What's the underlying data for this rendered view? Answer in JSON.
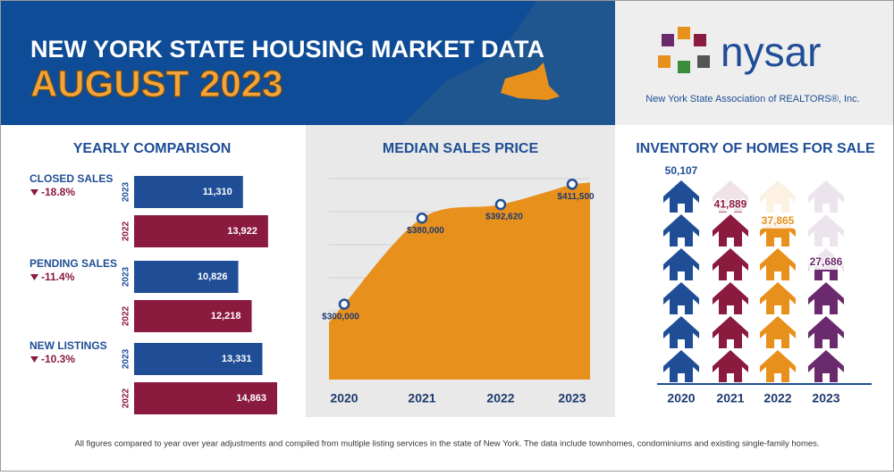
{
  "header": {
    "title": "NEW YORK STATE HOUSING MARKET DATA",
    "subtitle": "AUGUST 2023"
  },
  "logo": {
    "name": "nysar",
    "tagline": "New York State Association of REALTORS®, Inc."
  },
  "chart_data": [
    {
      "type": "hbar",
      "title": "YEARLY COMPARISON",
      "categories": [
        "CLOSED SALES",
        "PENDING SALES",
        "NEW LISTINGS"
      ],
      "changes": [
        "-18.8%",
        "-11.4%",
        "-10.3%"
      ],
      "series": [
        {
          "name": "2023",
          "color": "#1f4e96",
          "values": [
            11310,
            10826,
            13331
          ],
          "value_labels": [
            "11,310",
            "10,826",
            "13,331"
          ]
        },
        {
          "name": "2022",
          "color": "#8b1a3f",
          "values": [
            13922,
            12218,
            14863
          ],
          "value_labels": [
            "13,922",
            "12,218",
            "14,863"
          ]
        }
      ]
    },
    {
      "type": "area",
      "title": "MEDIAN SALES PRICE",
      "categories": [
        "2020",
        "2021",
        "2022",
        "2023"
      ],
      "values": [
        300000,
        380000,
        392620,
        411500
      ],
      "value_labels": [
        "$300,000",
        "$380,000",
        "$392,620",
        "$411,500"
      ],
      "color": "#e8901c",
      "ylim": [
        230000,
        425000
      ]
    },
    {
      "type": "pictogram",
      "title": "INVENTORY OF HOMES FOR SALE",
      "categories": [
        "2020",
        "2021",
        "2022",
        "2023"
      ],
      "values": [
        50107,
        41889,
        37865,
        27686
      ],
      "value_labels": [
        "50,107",
        "41,889",
        "37,865",
        "27,686"
      ],
      "colors": [
        "#1f4e96",
        "#8b1a3f",
        "#e8901c",
        "#6b2a6e"
      ]
    }
  ],
  "footer": "All figures compared to year over year adjustments and compiled from multiple listing services in the state of New York.  The data include townhomes, condominiums and existing single-family homes."
}
